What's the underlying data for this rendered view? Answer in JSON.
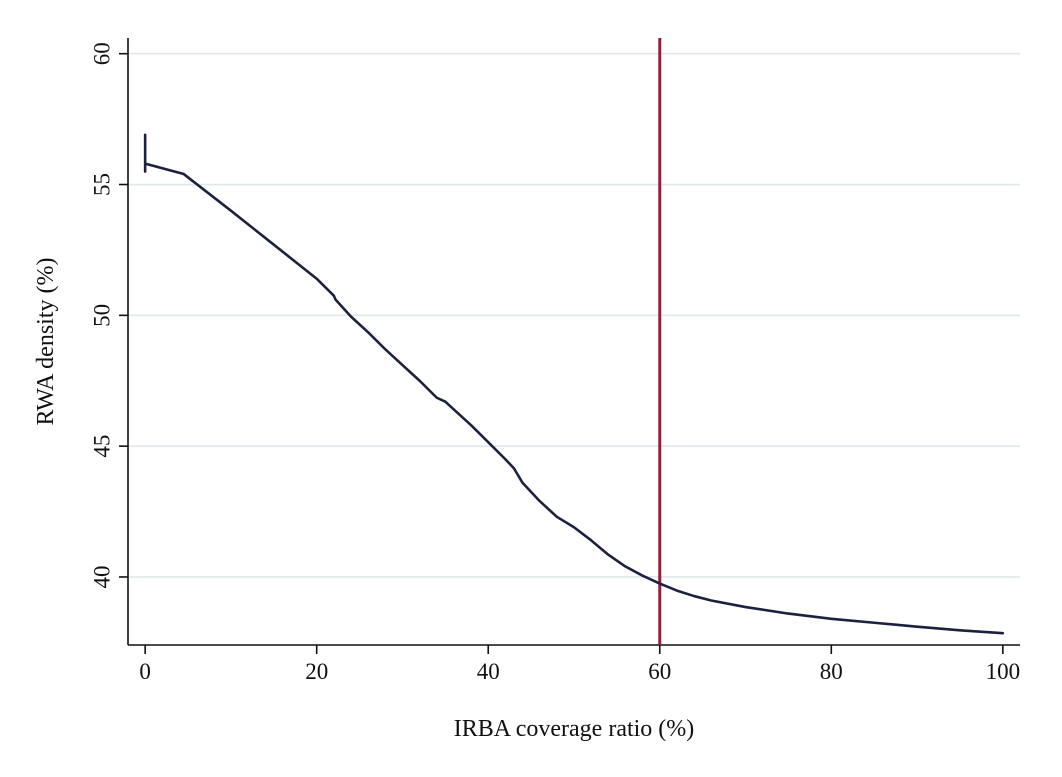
{
  "chart_data": {
    "type": "line",
    "title": "",
    "xlabel": "IRBA coverage ratio (%)",
    "ylabel": "RWA density (%)",
    "xlim": [
      -2,
      102
    ],
    "ylim": [
      37.4,
      60.6
    ],
    "xticks": [
      0,
      20,
      40,
      60,
      80,
      100
    ],
    "yticks": [
      40,
      45,
      50,
      55,
      60
    ],
    "xtick_labels": [
      "0",
      "20",
      "40",
      "60",
      "80",
      "100"
    ],
    "ytick_labels": [
      "40",
      "45",
      "50",
      "55",
      "60"
    ],
    "grid": "horizontal",
    "legend": "none",
    "series": [
      {
        "color": "#1a2240",
        "x": [
          0,
          0,
          0,
          4.5,
          10,
          15,
          20,
          22,
          22.2,
          24,
          26,
          28,
          30,
          32,
          34,
          35,
          36,
          38,
          40,
          42,
          43,
          44,
          46,
          48,
          50,
          52,
          54,
          56,
          58,
          60,
          62,
          64,
          66,
          70,
          75,
          80,
          85,
          90,
          95,
          100
        ],
        "y": [
          56.9,
          55.5,
          55.8,
          55.4,
          54.0,
          52.7,
          51.4,
          50.75,
          50.6,
          49.95,
          49.35,
          48.7,
          48.1,
          47.5,
          46.85,
          46.7,
          46.4,
          45.8,
          45.15,
          44.5,
          44.15,
          43.6,
          42.9,
          42.3,
          41.9,
          41.4,
          40.85,
          40.4,
          40.05,
          39.75,
          39.48,
          39.27,
          39.1,
          38.85,
          38.6,
          38.4,
          38.25,
          38.1,
          37.96,
          37.85
        ]
      }
    ],
    "reference_lines": [
      {
        "axis": "x",
        "value": 60,
        "color": "#9b1b3c"
      }
    ]
  }
}
